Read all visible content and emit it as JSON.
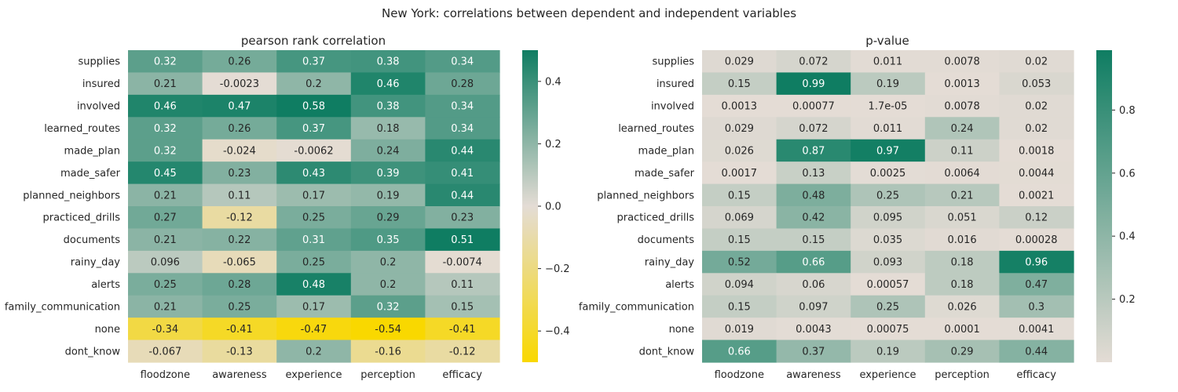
{
  "figure": {
    "suptitle": "New York: correlations between dependent and independent variables"
  },
  "chart_data": [
    {
      "type": "heatmap",
      "title": "pearson rank correlation",
      "x_categories": [
        "floodzone",
        "awareness",
        "experience",
        "perception",
        "efficacy"
      ],
      "y_categories": [
        "supplies",
        "insured",
        "involved",
        "learned_routes",
        "made_plan",
        "made_safer",
        "planned_neighbors",
        "practiced_drills",
        "documents",
        "rainy_day",
        "alerts",
        "family_communication",
        "none",
        "dont_know"
      ],
      "values": [
        [
          0.32,
          0.26,
          0.37,
          0.38,
          0.34
        ],
        [
          0.21,
          -0.0023,
          0.2,
          0.46,
          0.28
        ],
        [
          0.46,
          0.47,
          0.58,
          0.38,
          0.34
        ],
        [
          0.32,
          0.26,
          0.37,
          0.18,
          0.34
        ],
        [
          0.32,
          -0.024,
          -0.0062,
          0.24,
          0.44
        ],
        [
          0.45,
          0.23,
          0.43,
          0.39,
          0.41
        ],
        [
          0.21,
          0.11,
          0.17,
          0.19,
          0.44
        ],
        [
          0.27,
          -0.12,
          0.25,
          0.29,
          0.23
        ],
        [
          0.21,
          0.22,
          0.31,
          0.35,
          0.51
        ],
        [
          0.096,
          -0.065,
          0.25,
          0.2,
          -0.0074
        ],
        [
          0.25,
          0.28,
          0.48,
          0.2,
          0.11
        ],
        [
          0.21,
          0.25,
          0.17,
          0.32,
          0.15
        ],
        [
          -0.34,
          -0.41,
          -0.47,
          -0.54,
          -0.41
        ],
        [
          -0.067,
          -0.13,
          0.2,
          -0.16,
          -0.12
        ]
      ],
      "labels": [
        [
          "0.32",
          "0.26",
          "0.37",
          "0.38",
          "0.34"
        ],
        [
          "0.21",
          "-0.0023",
          "0.2",
          "0.46",
          "0.28"
        ],
        [
          "0.46",
          "0.47",
          "0.58",
          "0.38",
          "0.34"
        ],
        [
          "0.32",
          "0.26",
          "0.37",
          "0.18",
          "0.34"
        ],
        [
          "0.32",
          "-0.024",
          "-0.0062",
          "0.24",
          "0.44"
        ],
        [
          "0.45",
          "0.23",
          "0.43",
          "0.39",
          "0.41"
        ],
        [
          "0.21",
          "0.11",
          "0.17",
          "0.19",
          "0.44"
        ],
        [
          "0.27",
          "-0.12",
          "0.25",
          "0.29",
          "0.23"
        ],
        [
          "0.21",
          "0.22",
          "0.31",
          "0.35",
          "0.51"
        ],
        [
          "0.096",
          "-0.065",
          "0.25",
          "0.2",
          "-0.0074"
        ],
        [
          "0.25",
          "0.28",
          "0.48",
          "0.2",
          "0.11"
        ],
        [
          "0.21",
          "0.25",
          "0.17",
          "0.32",
          "0.15"
        ],
        [
          "-0.34",
          "-0.41",
          "-0.47",
          "-0.54",
          "-0.41"
        ],
        [
          "-0.067",
          "-0.13",
          "0.2",
          "-0.16",
          "-0.12"
        ]
      ],
      "vmin": -0.5,
      "vmax": 0.5,
      "colormap": [
        "#f9d800",
        "#e4dcd5",
        "#0f7d62"
      ],
      "colorbar_ticks": [
        -0.4,
        -0.2,
        0.0,
        0.2,
        0.4
      ],
      "colorbar_tick_labels": [
        "−0.4",
        "−0.2",
        "0.0",
        "0.2",
        "0.4"
      ]
    },
    {
      "type": "heatmap",
      "title": "p-value",
      "x_categories": [
        "floodzone",
        "awareness",
        "experience",
        "perception",
        "efficacy"
      ],
      "y_categories": [
        "supplies",
        "insured",
        "involved",
        "learned_routes",
        "made_plan",
        "made_safer",
        "planned_neighbors",
        "practiced_drills",
        "documents",
        "rainy_day",
        "alerts",
        "family_communication",
        "none",
        "dont_know"
      ],
      "values": [
        [
          0.029,
          0.072,
          0.011,
          0.0078,
          0.02
        ],
        [
          0.15,
          0.99,
          0.19,
          0.0013,
          0.053
        ],
        [
          0.0013,
          0.00077,
          1.7e-05,
          0.0078,
          0.02
        ],
        [
          0.029,
          0.072,
          0.011,
          0.24,
          0.02
        ],
        [
          0.026,
          0.87,
          0.97,
          0.11,
          0.0018
        ],
        [
          0.0017,
          0.13,
          0.0025,
          0.0064,
          0.0044
        ],
        [
          0.15,
          0.48,
          0.25,
          0.21,
          0.0021
        ],
        [
          0.069,
          0.42,
          0.095,
          0.051,
          0.12
        ],
        [
          0.15,
          0.15,
          0.035,
          0.016,
          0.00028
        ],
        [
          0.52,
          0.66,
          0.093,
          0.18,
          0.96
        ],
        [
          0.094,
          0.06,
          0.00057,
          0.18,
          0.47
        ],
        [
          0.15,
          0.097,
          0.25,
          0.026,
          0.3
        ],
        [
          0.019,
          0.0043,
          0.00075,
          0.0001,
          0.0041
        ],
        [
          0.66,
          0.37,
          0.19,
          0.29,
          0.44
        ]
      ],
      "labels": [
        [
          "0.029",
          "0.072",
          "0.011",
          "0.0078",
          "0.02"
        ],
        [
          "0.15",
          "0.99",
          "0.19",
          "0.0013",
          "0.053"
        ],
        [
          "0.0013",
          "0.00077",
          "1.7e-05",
          "0.0078",
          "0.02"
        ],
        [
          "0.029",
          "0.072",
          "0.011",
          "0.24",
          "0.02"
        ],
        [
          "0.026",
          "0.87",
          "0.97",
          "0.11",
          "0.0018"
        ],
        [
          "0.0017",
          "0.13",
          "0.0025",
          "0.0064",
          "0.0044"
        ],
        [
          "0.15",
          "0.48",
          "0.25",
          "0.21",
          "0.0021"
        ],
        [
          "0.069",
          "0.42",
          "0.095",
          "0.051",
          "0.12"
        ],
        [
          "0.15",
          "0.15",
          "0.035",
          "0.016",
          "0.00028"
        ],
        [
          "0.52",
          "0.66",
          "0.093",
          "0.18",
          "0.96"
        ],
        [
          "0.094",
          "0.06",
          "0.00057",
          "0.18",
          "0.47"
        ],
        [
          "0.15",
          "0.097",
          "0.25",
          "0.026",
          "0.3"
        ],
        [
          "0.019",
          "0.0043",
          "0.00075",
          "0.0001",
          "0.0041"
        ],
        [
          "0.66",
          "0.37",
          "0.19",
          "0.29",
          "0.44"
        ]
      ],
      "vmin": 1e-05,
      "vmax": 0.99,
      "colormap": [
        "#e4dcd5",
        "#0f7d62"
      ],
      "colorbar_ticks": [
        0.2,
        0.4,
        0.6,
        0.8
      ],
      "colorbar_tick_labels": [
        "0.2",
        "0.4",
        "0.6",
        "0.8"
      ]
    }
  ]
}
